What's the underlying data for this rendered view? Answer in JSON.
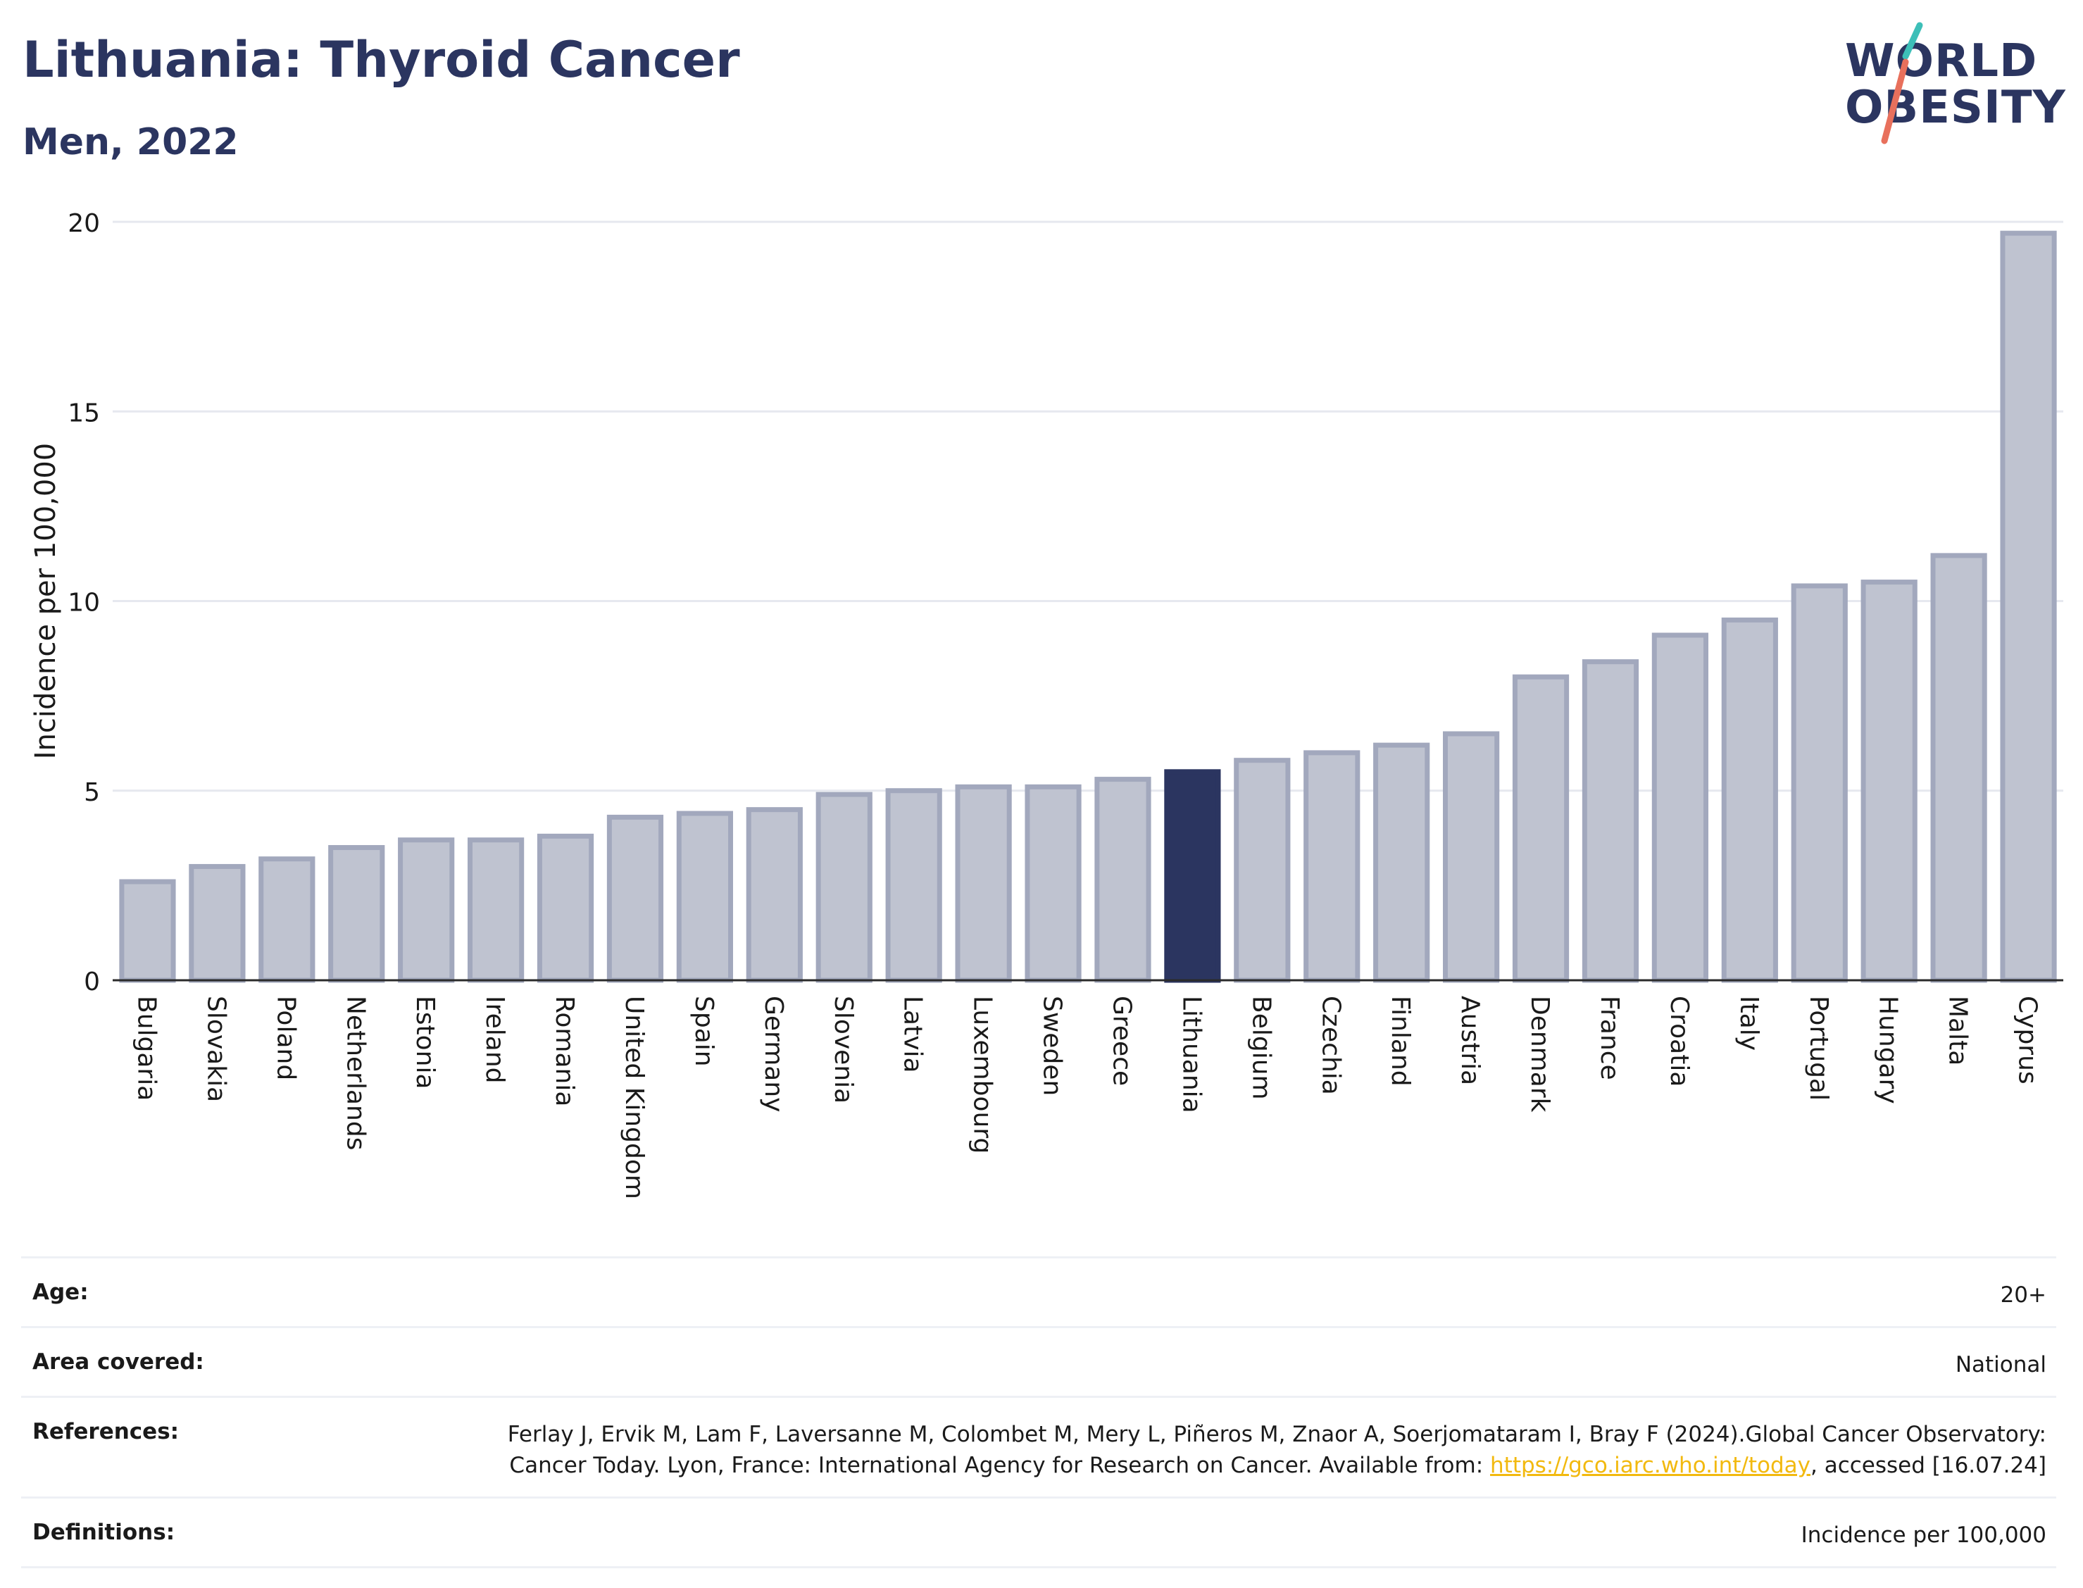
{
  "header": {
    "title": "Lithuania: Thyroid Cancer",
    "subtitle": "Men, 2022"
  },
  "logo": {
    "line1": "WORLD",
    "line2": "OBESITY"
  },
  "colors": {
    "highlight": "#2b3560",
    "bar": "#bfc3d0",
    "bar_border": "#a2a8bd",
    "accent_teal": "#3dbfb8",
    "accent_coral": "#e8705c"
  },
  "chart_data": {
    "type": "bar",
    "ylabel": "Incidence per 100,000",
    "ylim": [
      0,
      20
    ],
    "yticks": [
      0,
      5,
      10,
      15,
      20
    ],
    "grid": true,
    "highlight": "Lithuania",
    "categories": [
      "Bulgaria",
      "Slovakia",
      "Poland",
      "Netherlands",
      "Estonia",
      "Ireland",
      "Romania",
      "United Kingdom",
      "Spain",
      "Germany",
      "Slovenia",
      "Latvia",
      "Luxembourg",
      "Sweden",
      "Greece",
      "Lithuania",
      "Belgium",
      "Czechia",
      "Finland",
      "Austria",
      "Denmark",
      "France",
      "Croatia",
      "Italy",
      "Portugal",
      "Hungary",
      "Malta",
      "Cyprus"
    ],
    "values": [
      2.6,
      3.0,
      3.2,
      3.5,
      3.7,
      3.7,
      3.8,
      4.3,
      4.4,
      4.5,
      4.9,
      5.0,
      5.1,
      5.1,
      5.3,
      5.5,
      5.8,
      6.0,
      6.2,
      6.5,
      8.0,
      8.4,
      9.1,
      9.5,
      10.4,
      10.5,
      11.2,
      19.7
    ]
  },
  "info": {
    "age_label": "Age:",
    "age_value": "20+",
    "area_label": "Area covered:",
    "area_value": "National",
    "references_label": "References:",
    "references_text1": "Ferlay J, Ervik M, Lam F, Laversanne M, Colombet M, Mery L, Piñeros M, Znaor A, Soerjomataram I, Bray F (2024).Global Cancer Observatory: Cancer Today. Lyon, France: International Agency for Research on Cancer. Available from: ",
    "references_link": "https://gco.iarc.who.int/today",
    "references_text2": ", accessed [16.07.24]",
    "definitions_label": "Definitions:",
    "definitions_value": "Incidence per 100,000"
  }
}
